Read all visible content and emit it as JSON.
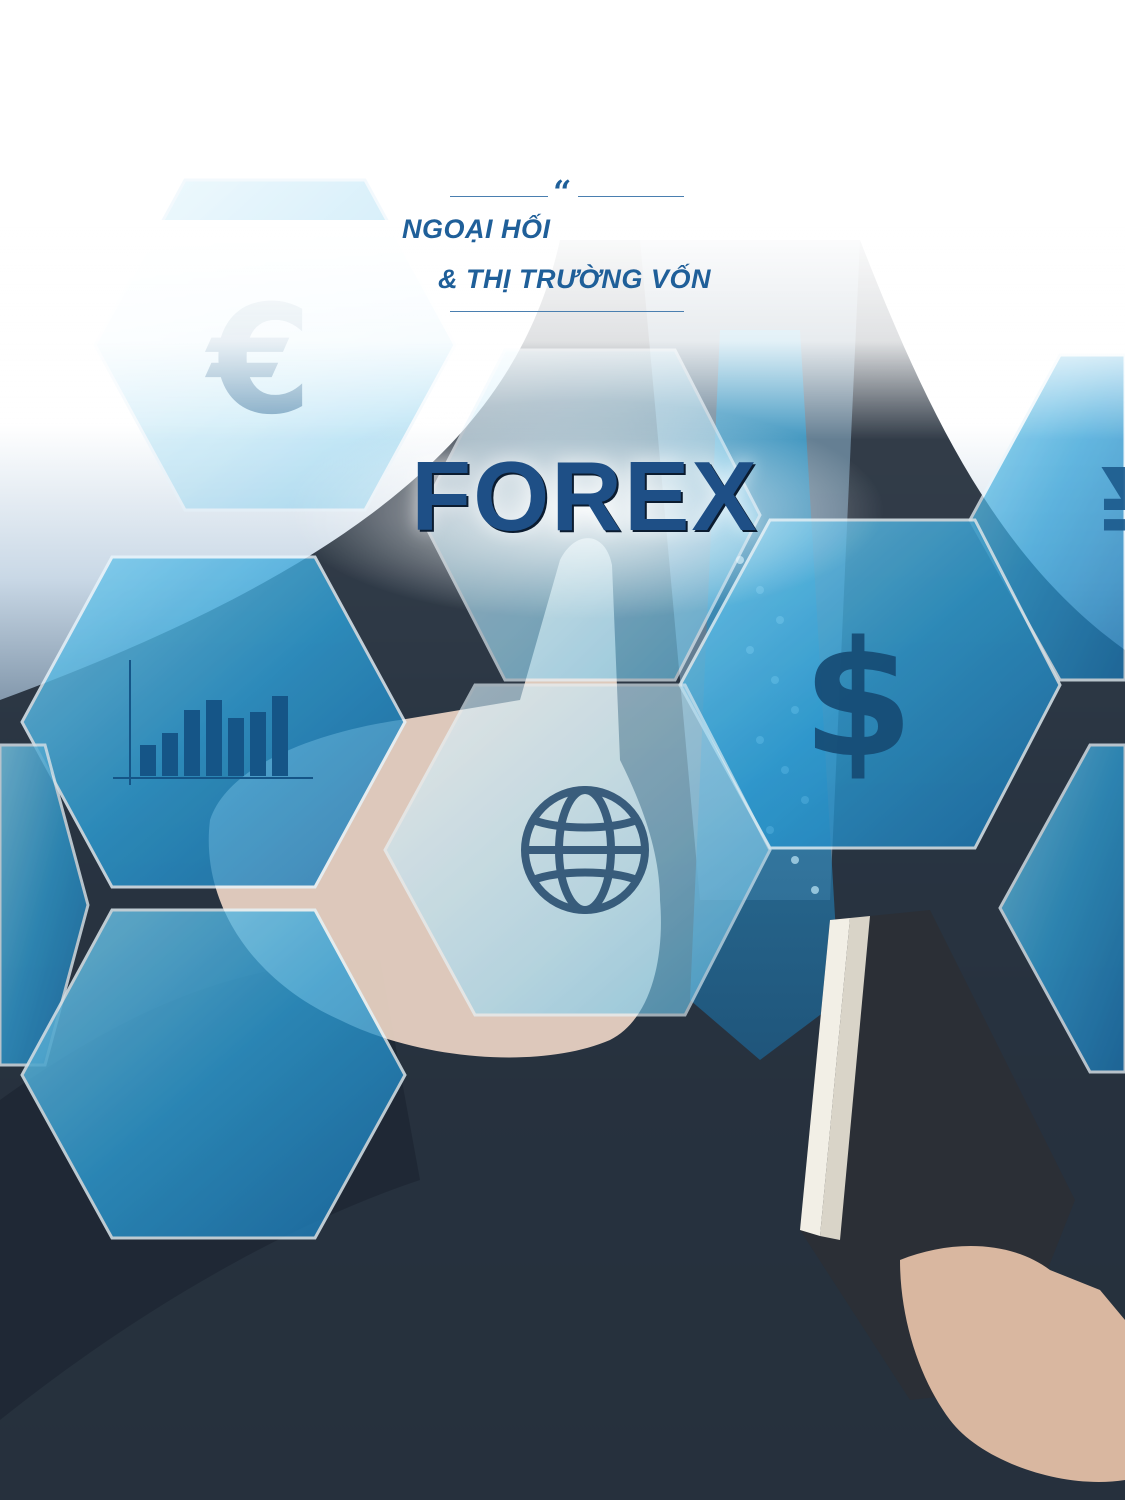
{
  "heading": {
    "line1": "NGOẠI HỐI",
    "line2": "& THỊ TRƯỜNG VỐN",
    "quote_mark": "“",
    "accent_color": "#1f5f99"
  },
  "visual": {
    "hex_center_label": "FOREX",
    "icons": [
      "euro-icon",
      "yen-icon",
      "dollar-icon",
      "bar-chart-icon",
      "globe-icon"
    ],
    "symbols": {
      "euro": "€",
      "dollar": "$",
      "yen": "¥"
    }
  }
}
